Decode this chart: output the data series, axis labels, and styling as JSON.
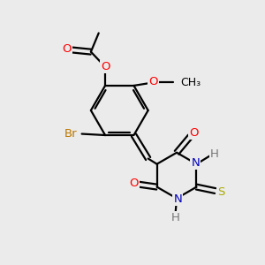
{
  "bg_color": "#ebebeb",
  "atom_colors": {
    "C": "#000000",
    "O": "#ff0000",
    "N": "#0000bb",
    "S": "#aaaa00",
    "Br": "#bb7700",
    "H": "#777777"
  },
  "bond_color": "#000000",
  "bond_width": 1.6,
  "font_size": 9.5
}
